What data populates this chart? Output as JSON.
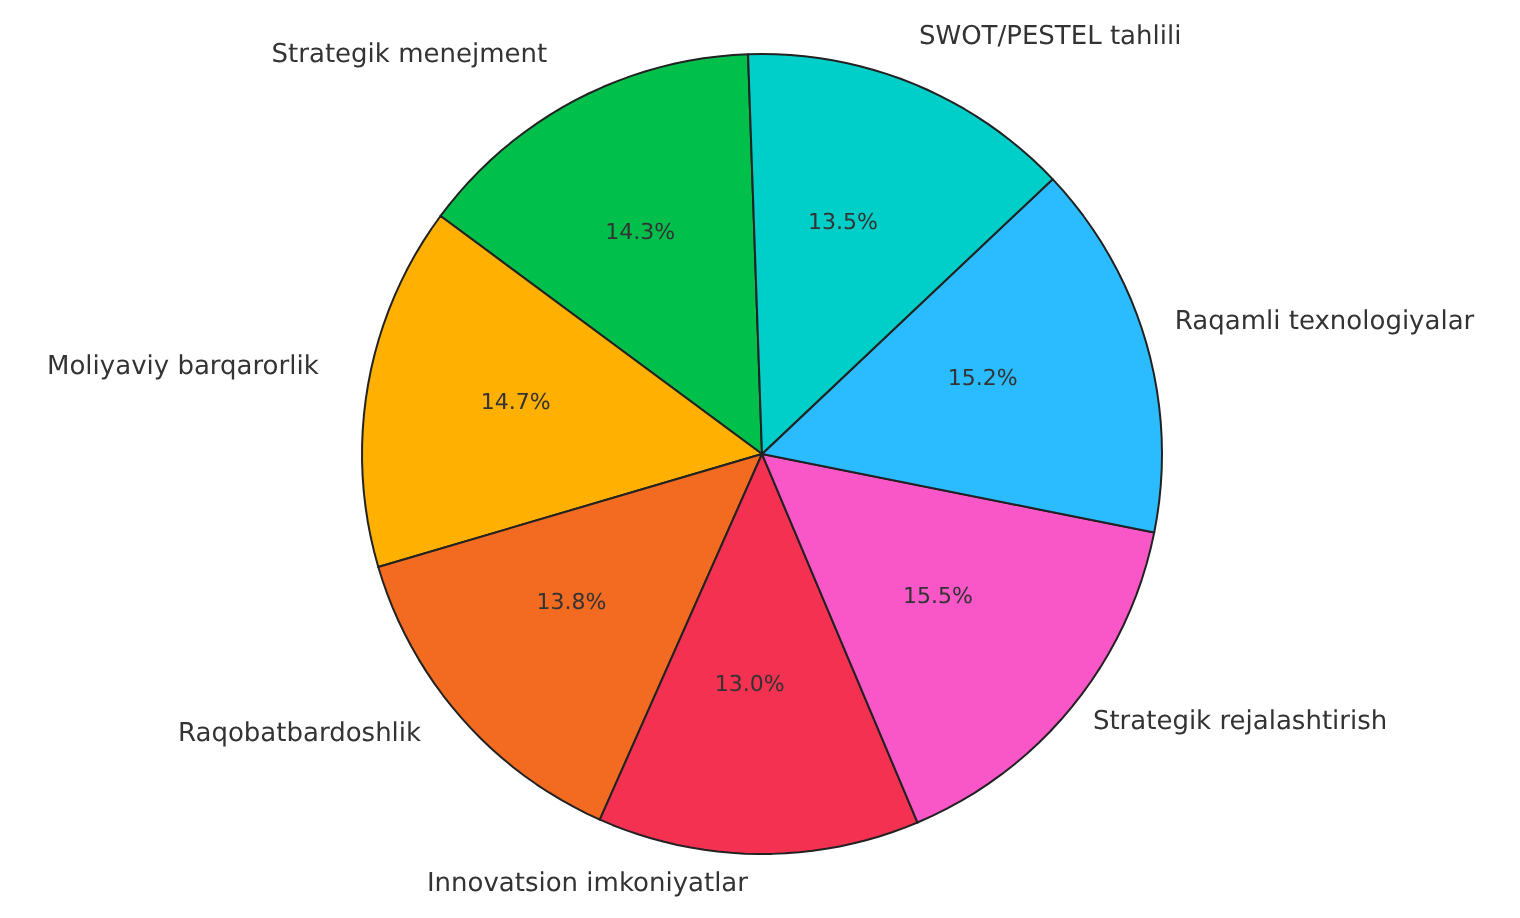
{
  "chart_data": {
    "type": "pie",
    "categories": [
      "Strategik menejment",
      "Moliyaviy barqarorlik",
      "Raqobatbardoshlik",
      "Innovatsion imkoniyatlar",
      "Strategik rejalashtirish",
      "Raqamli texnologiyalar",
      "SWOT/PESTEL tahlili"
    ],
    "values": [
      14.3,
      14.7,
      13.8,
      13.0,
      15.5,
      15.2,
      13.5
    ],
    "colors": [
      "#00c04b",
      "#ffb000",
      "#f26b21",
      "#f53152",
      "#f956c8",
      "#2bbcff",
      "#00cec8"
    ],
    "value_labels": [
      "14.3%",
      "14.7%",
      "13.8%",
      "13.0%",
      "15.5%",
      "15.2%",
      "13.5%"
    ]
  }
}
